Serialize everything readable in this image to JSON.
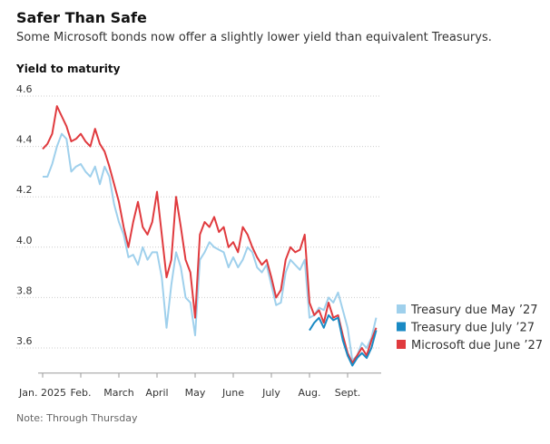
{
  "chart_data": {
    "type": "line",
    "title": "Safer Than Safe",
    "subtitle": "Some Microsoft bonds now offer a slightly lower yield than equivalent Treasurys.",
    "y_label": "Yield to maturity",
    "note": "Note: Through Thursday",
    "categories": [
      "Jan. 2025",
      null,
      null,
      null,
      null,
      null,
      null,
      null,
      "Feb.",
      null,
      null,
      null,
      null,
      null,
      null,
      null,
      "March",
      null,
      null,
      null,
      null,
      null,
      null,
      null,
      "April",
      null,
      null,
      null,
      null,
      null,
      null,
      null,
      "May",
      null,
      null,
      null,
      null,
      null,
      null,
      null,
      "June",
      null,
      null,
      null,
      null,
      null,
      null,
      null,
      "July",
      null,
      null,
      null,
      null,
      null,
      null,
      null,
      "Aug.",
      null,
      null,
      null,
      null,
      null,
      null,
      null,
      "Sept.",
      null,
      null,
      null,
      null,
      null,
      null
    ],
    "series": [
      {
        "name": "Treasury due May ’27",
        "color": "#9fd0ec",
        "values": [
          4.28,
          4.28,
          4.33,
          4.4,
          4.45,
          4.43,
          4.3,
          4.32,
          4.33,
          4.3,
          4.28,
          4.32,
          4.25,
          4.32,
          4.28,
          4.17,
          4.1,
          4.05,
          3.96,
          3.97,
          3.93,
          4.0,
          3.95,
          3.98,
          3.98,
          3.88,
          3.68,
          3.85,
          3.98,
          3.92,
          3.8,
          3.78,
          3.65,
          3.95,
          3.98,
          4.02,
          4.0,
          3.99,
          3.98,
          3.92,
          3.96,
          3.92,
          3.95,
          4.0,
          3.98,
          3.92,
          3.9,
          3.93,
          3.85,
          3.77,
          3.78,
          3.9,
          3.95,
          3.93,
          3.91,
          3.95,
          3.72,
          3.73,
          3.76,
          3.75,
          3.8,
          3.78,
          3.82,
          3.75,
          3.68,
          3.55,
          3.57,
          3.62,
          3.6,
          3.64,
          3.72
        ]
      },
      {
        "name": "Treasury due July ’27",
        "color": "#1a8ac4",
        "values": [
          null,
          null,
          null,
          null,
          null,
          null,
          null,
          null,
          null,
          null,
          null,
          null,
          null,
          null,
          null,
          null,
          null,
          null,
          null,
          null,
          null,
          null,
          null,
          null,
          null,
          null,
          null,
          null,
          null,
          null,
          null,
          null,
          null,
          null,
          null,
          null,
          null,
          null,
          null,
          null,
          null,
          null,
          null,
          null,
          null,
          null,
          null,
          null,
          null,
          null,
          null,
          null,
          null,
          null,
          null,
          null,
          3.67,
          3.7,
          3.72,
          3.68,
          3.73,
          3.71,
          3.72,
          3.63,
          3.57,
          3.53,
          3.56,
          3.58,
          3.56,
          3.6,
          3.67
        ]
      },
      {
        "name": "Microsoft due June ’27",
        "color": "#e03a3e",
        "values": [
          4.39,
          4.41,
          4.45,
          4.56,
          4.52,
          4.48,
          4.42,
          4.43,
          4.45,
          4.42,
          4.4,
          4.47,
          4.41,
          4.38,
          4.32,
          4.25,
          4.18,
          4.08,
          4.0,
          4.1,
          4.18,
          4.08,
          4.05,
          4.1,
          4.22,
          4.05,
          3.88,
          3.95,
          4.2,
          4.08,
          3.95,
          3.9,
          3.72,
          4.05,
          4.1,
          4.08,
          4.12,
          4.06,
          4.08,
          4.0,
          4.02,
          3.98,
          4.08,
          4.05,
          4.0,
          3.96,
          3.93,
          3.95,
          3.88,
          3.8,
          3.83,
          3.95,
          4.0,
          3.98,
          3.99,
          4.05,
          3.78,
          3.73,
          3.75,
          3.7,
          3.78,
          3.72,
          3.73,
          3.65,
          3.58,
          3.54,
          3.57,
          3.6,
          3.57,
          3.63,
          3.68
        ]
      }
    ],
    "ylim": [
      3.5,
      4.6
    ],
    "yticks": [
      3.6,
      3.8,
      {
        "value": 4,
        "label": "4.0"
      },
      4.2,
      4.4,
      4.6
    ],
    "grid": true,
    "legend": "right"
  }
}
